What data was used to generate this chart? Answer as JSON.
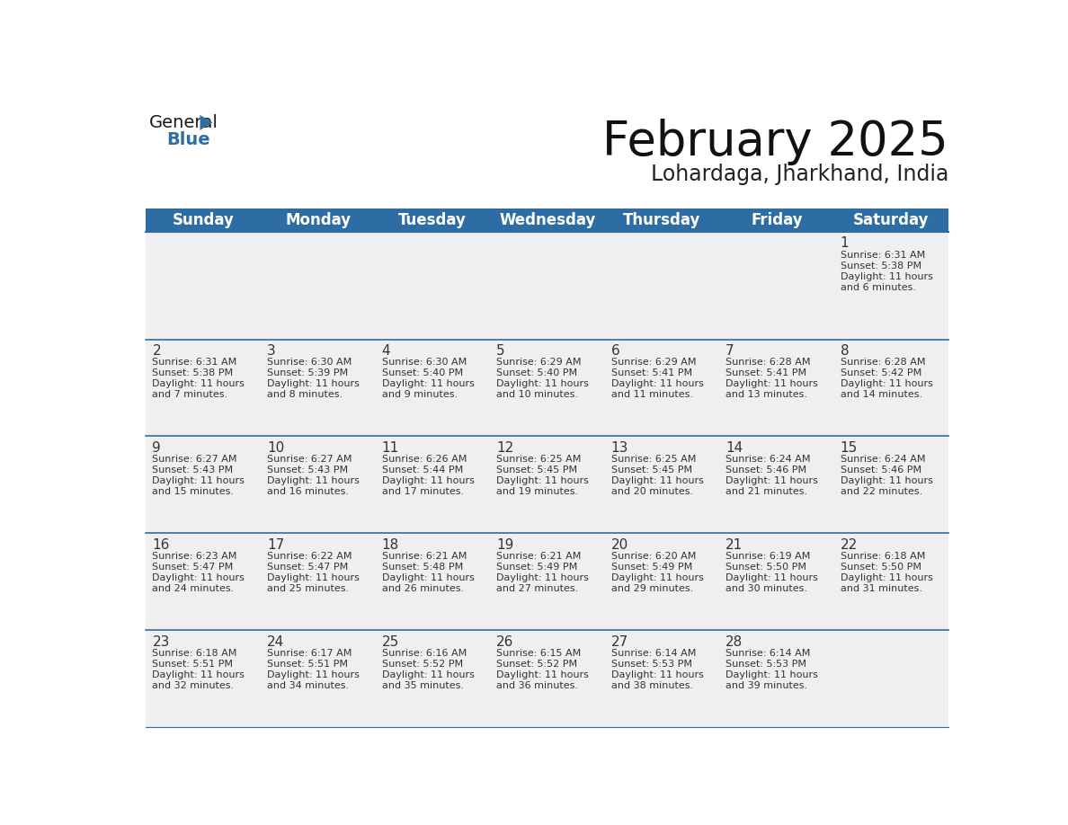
{
  "title": "February 2025",
  "subtitle": "Lohardaga, Jharkhand, India",
  "header_color": "#2E6DA4",
  "header_text_color": "#FFFFFF",
  "cell_bg_color": "#EFEFEF",
  "border_color": "#2E6DA4",
  "text_color": "#333333",
  "day_names": [
    "Sunday",
    "Monday",
    "Tuesday",
    "Wednesday",
    "Thursday",
    "Friday",
    "Saturday"
  ],
  "days": [
    {
      "day": 1,
      "col": 6,
      "row": 0,
      "sunrise": "6:31 AM",
      "sunset": "5:38 PM",
      "daylight_hours": 11,
      "daylight_minutes": 6
    },
    {
      "day": 2,
      "col": 0,
      "row": 1,
      "sunrise": "6:31 AM",
      "sunset": "5:38 PM",
      "daylight_hours": 11,
      "daylight_minutes": 7
    },
    {
      "day": 3,
      "col": 1,
      "row": 1,
      "sunrise": "6:30 AM",
      "sunset": "5:39 PM",
      "daylight_hours": 11,
      "daylight_minutes": 8
    },
    {
      "day": 4,
      "col": 2,
      "row": 1,
      "sunrise": "6:30 AM",
      "sunset": "5:40 PM",
      "daylight_hours": 11,
      "daylight_minutes": 9
    },
    {
      "day": 5,
      "col": 3,
      "row": 1,
      "sunrise": "6:29 AM",
      "sunset": "5:40 PM",
      "daylight_hours": 11,
      "daylight_minutes": 10
    },
    {
      "day": 6,
      "col": 4,
      "row": 1,
      "sunrise": "6:29 AM",
      "sunset": "5:41 PM",
      "daylight_hours": 11,
      "daylight_minutes": 11
    },
    {
      "day": 7,
      "col": 5,
      "row": 1,
      "sunrise": "6:28 AM",
      "sunset": "5:41 PM",
      "daylight_hours": 11,
      "daylight_minutes": 13
    },
    {
      "day": 8,
      "col": 6,
      "row": 1,
      "sunrise": "6:28 AM",
      "sunset": "5:42 PM",
      "daylight_hours": 11,
      "daylight_minutes": 14
    },
    {
      "day": 9,
      "col": 0,
      "row": 2,
      "sunrise": "6:27 AM",
      "sunset": "5:43 PM",
      "daylight_hours": 11,
      "daylight_minutes": 15
    },
    {
      "day": 10,
      "col": 1,
      "row": 2,
      "sunrise": "6:27 AM",
      "sunset": "5:43 PM",
      "daylight_hours": 11,
      "daylight_minutes": 16
    },
    {
      "day": 11,
      "col": 2,
      "row": 2,
      "sunrise": "6:26 AM",
      "sunset": "5:44 PM",
      "daylight_hours": 11,
      "daylight_minutes": 17
    },
    {
      "day": 12,
      "col": 3,
      "row": 2,
      "sunrise": "6:25 AM",
      "sunset": "5:45 PM",
      "daylight_hours": 11,
      "daylight_minutes": 19
    },
    {
      "day": 13,
      "col": 4,
      "row": 2,
      "sunrise": "6:25 AM",
      "sunset": "5:45 PM",
      "daylight_hours": 11,
      "daylight_minutes": 20
    },
    {
      "day": 14,
      "col": 5,
      "row": 2,
      "sunrise": "6:24 AM",
      "sunset": "5:46 PM",
      "daylight_hours": 11,
      "daylight_minutes": 21
    },
    {
      "day": 15,
      "col": 6,
      "row": 2,
      "sunrise": "6:24 AM",
      "sunset": "5:46 PM",
      "daylight_hours": 11,
      "daylight_minutes": 22
    },
    {
      "day": 16,
      "col": 0,
      "row": 3,
      "sunrise": "6:23 AM",
      "sunset": "5:47 PM",
      "daylight_hours": 11,
      "daylight_minutes": 24
    },
    {
      "day": 17,
      "col": 1,
      "row": 3,
      "sunrise": "6:22 AM",
      "sunset": "5:47 PM",
      "daylight_hours": 11,
      "daylight_minutes": 25
    },
    {
      "day": 18,
      "col": 2,
      "row": 3,
      "sunrise": "6:21 AM",
      "sunset": "5:48 PM",
      "daylight_hours": 11,
      "daylight_minutes": 26
    },
    {
      "day": 19,
      "col": 3,
      "row": 3,
      "sunrise": "6:21 AM",
      "sunset": "5:49 PM",
      "daylight_hours": 11,
      "daylight_minutes": 27
    },
    {
      "day": 20,
      "col": 4,
      "row": 3,
      "sunrise": "6:20 AM",
      "sunset": "5:49 PM",
      "daylight_hours": 11,
      "daylight_minutes": 29
    },
    {
      "day": 21,
      "col": 5,
      "row": 3,
      "sunrise": "6:19 AM",
      "sunset": "5:50 PM",
      "daylight_hours": 11,
      "daylight_minutes": 30
    },
    {
      "day": 22,
      "col": 6,
      "row": 3,
      "sunrise": "6:18 AM",
      "sunset": "5:50 PM",
      "daylight_hours": 11,
      "daylight_minutes": 31
    },
    {
      "day": 23,
      "col": 0,
      "row": 4,
      "sunrise": "6:18 AM",
      "sunset": "5:51 PM",
      "daylight_hours": 11,
      "daylight_minutes": 32
    },
    {
      "day": 24,
      "col": 1,
      "row": 4,
      "sunrise": "6:17 AM",
      "sunset": "5:51 PM",
      "daylight_hours": 11,
      "daylight_minutes": 34
    },
    {
      "day": 25,
      "col": 2,
      "row": 4,
      "sunrise": "6:16 AM",
      "sunset": "5:52 PM",
      "daylight_hours": 11,
      "daylight_minutes": 35
    },
    {
      "day": 26,
      "col": 3,
      "row": 4,
      "sunrise": "6:15 AM",
      "sunset": "5:52 PM",
      "daylight_hours": 11,
      "daylight_minutes": 36
    },
    {
      "day": 27,
      "col": 4,
      "row": 4,
      "sunrise": "6:14 AM",
      "sunset": "5:53 PM",
      "daylight_hours": 11,
      "daylight_minutes": 38
    },
    {
      "day": 28,
      "col": 5,
      "row": 4,
      "sunrise": "6:14 AM",
      "sunset": "5:53 PM",
      "daylight_hours": 11,
      "daylight_minutes": 39
    }
  ],
  "num_rows": 5,
  "num_cols": 7,
  "title_fontsize": 38,
  "subtitle_fontsize": 17,
  "header_fontsize": 12,
  "day_num_fontsize": 11,
  "cell_text_fontsize": 8
}
